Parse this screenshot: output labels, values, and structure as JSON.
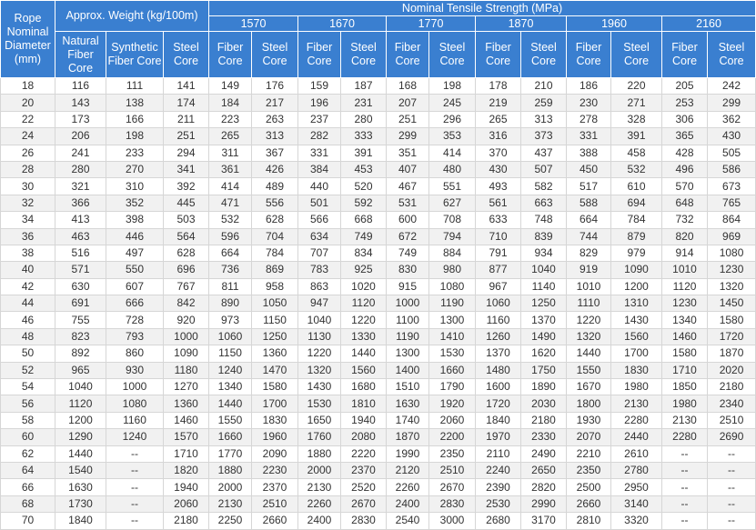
{
  "headers": {
    "rope_diameter": "Rope Nominal Diameter (mm)",
    "approx_weight": "Approx. Weight (kg/100m)",
    "nominal_strength": "Nominal Tensile Strength (MPa)",
    "grades": [
      "1570",
      "1670",
      "1770",
      "1870",
      "1960",
      "2160"
    ],
    "weight_cols": [
      "Natural Fiber Core",
      "Synthetic Fiber Core",
      "Steel Core"
    ],
    "strength_cols": [
      "Fiber Core",
      "Steel Core"
    ]
  },
  "rows": [
    [
      "18",
      "116",
      "111",
      "141",
      "149",
      "176",
      "159",
      "187",
      "168",
      "198",
      "178",
      "210",
      "186",
      "220",
      "205",
      "242"
    ],
    [
      "20",
      "143",
      "138",
      "174",
      "184",
      "217",
      "196",
      "231",
      "207",
      "245",
      "219",
      "259",
      "230",
      "271",
      "253",
      "299"
    ],
    [
      "22",
      "173",
      "166",
      "211",
      "223",
      "263",
      "237",
      "280",
      "251",
      "296",
      "265",
      "313",
      "278",
      "328",
      "306",
      "362"
    ],
    [
      "24",
      "206",
      "198",
      "251",
      "265",
      "313",
      "282",
      "333",
      "299",
      "353",
      "316",
      "373",
      "331",
      "391",
      "365",
      "430"
    ],
    [
      "26",
      "241",
      "233",
      "294",
      "311",
      "367",
      "331",
      "391",
      "351",
      "414",
      "370",
      "437",
      "388",
      "458",
      "428",
      "505"
    ],
    [
      "28",
      "280",
      "270",
      "341",
      "361",
      "426",
      "384",
      "453",
      "407",
      "480",
      "430",
      "507",
      "450",
      "532",
      "496",
      "586"
    ],
    [
      "30",
      "321",
      "310",
      "392",
      "414",
      "489",
      "440",
      "520",
      "467",
      "551",
      "493",
      "582",
      "517",
      "610",
      "570",
      "673"
    ],
    [
      "32",
      "366",
      "352",
      "445",
      "471",
      "556",
      "501",
      "592",
      "531",
      "627",
      "561",
      "663",
      "588",
      "694",
      "648",
      "765"
    ],
    [
      "34",
      "413",
      "398",
      "503",
      "532",
      "628",
      "566",
      "668",
      "600",
      "708",
      "633",
      "748",
      "664",
      "784",
      "732",
      "864"
    ],
    [
      "36",
      "463",
      "446",
      "564",
      "596",
      "704",
      "634",
      "749",
      "672",
      "794",
      "710",
      "839",
      "744",
      "879",
      "820",
      "969"
    ],
    [
      "38",
      "516",
      "497",
      "628",
      "664",
      "784",
      "707",
      "834",
      "749",
      "884",
      "791",
      "934",
      "829",
      "979",
      "914",
      "1080"
    ],
    [
      "40",
      "571",
      "550",
      "696",
      "736",
      "869",
      "783",
      "925",
      "830",
      "980",
      "877",
      "1040",
      "919",
      "1090",
      "1010",
      "1230"
    ],
    [
      "42",
      "630",
      "607",
      "767",
      "811",
      "958",
      "863",
      "1020",
      "915",
      "1080",
      "967",
      "1140",
      "1010",
      "1200",
      "1120",
      "1320"
    ],
    [
      "44",
      "691",
      "666",
      "842",
      "890",
      "1050",
      "947",
      "1120",
      "1000",
      "1190",
      "1060",
      "1250",
      "1110",
      "1310",
      "1230",
      "1450"
    ],
    [
      "46",
      "755",
      "728",
      "920",
      "973",
      "1150",
      "1040",
      "1220",
      "1100",
      "1300",
      "1160",
      "1370",
      "1220",
      "1430",
      "1340",
      "1580"
    ],
    [
      "48",
      "823",
      "793",
      "1000",
      "1060",
      "1250",
      "1130",
      "1330",
      "1190",
      "1410",
      "1260",
      "1490",
      "1320",
      "1560",
      "1460",
      "1720"
    ],
    [
      "50",
      "892",
      "860",
      "1090",
      "1150",
      "1360",
      "1220",
      "1440",
      "1300",
      "1530",
      "1370",
      "1620",
      "1440",
      "1700",
      "1580",
      "1870"
    ],
    [
      "52",
      "965",
      "930",
      "1180",
      "1240",
      "1470",
      "1320",
      "1560",
      "1400",
      "1660",
      "1480",
      "1750",
      "1550",
      "1830",
      "1710",
      "2020"
    ],
    [
      "54",
      "1040",
      "1000",
      "1270",
      "1340",
      "1580",
      "1430",
      "1680",
      "1510",
      "1790",
      "1600",
      "1890",
      "1670",
      "1980",
      "1850",
      "2180"
    ],
    [
      "56",
      "1120",
      "1080",
      "1360",
      "1440",
      "1700",
      "1530",
      "1810",
      "1630",
      "1920",
      "1720",
      "2030",
      "1800",
      "2130",
      "1980",
      "2340"
    ],
    [
      "58",
      "1200",
      "1160",
      "1460",
      "1550",
      "1830",
      "1650",
      "1940",
      "1740",
      "2060",
      "1840",
      "2180",
      "1930",
      "2280",
      "2130",
      "2510"
    ],
    [
      "60",
      "1290",
      "1240",
      "1570",
      "1660",
      "1960",
      "1760",
      "2080",
      "1870",
      "2200",
      "1970",
      "2330",
      "2070",
      "2440",
      "2280",
      "2690"
    ],
    [
      "62",
      "1440",
      "--",
      "1710",
      "1770",
      "2090",
      "1880",
      "2220",
      "1990",
      "2350",
      "2110",
      "2490",
      "2210",
      "2610",
      "--",
      "--"
    ],
    [
      "64",
      "1540",
      "--",
      "1820",
      "1880",
      "2230",
      "2000",
      "2370",
      "2120",
      "2510",
      "2240",
      "2650",
      "2350",
      "2780",
      "--",
      "--"
    ],
    [
      "66",
      "1630",
      "--",
      "1940",
      "2000",
      "2370",
      "2130",
      "2520",
      "2260",
      "2670",
      "2390",
      "2820",
      "2500",
      "2950",
      "--",
      "--"
    ],
    [
      "68",
      "1730",
      "--",
      "2060",
      "2130",
      "2510",
      "2260",
      "2670",
      "2400",
      "2830",
      "2530",
      "2990",
      "2660",
      "3140",
      "--",
      "--"
    ],
    [
      "70",
      "1840",
      "--",
      "2180",
      "2250",
      "2660",
      "2400",
      "2830",
      "2540",
      "3000",
      "2680",
      "3170",
      "2810",
      "3320",
      "--",
      "--"
    ]
  ]
}
